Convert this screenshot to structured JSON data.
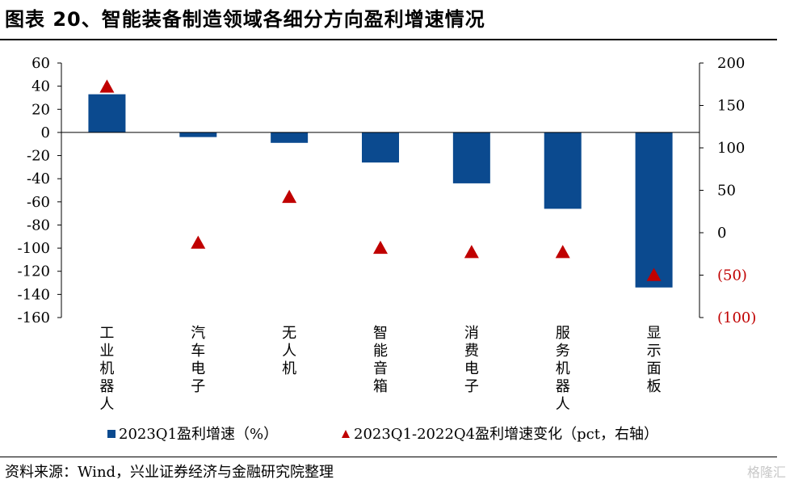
{
  "title": "图表 20、智能装备制造领域各细分方向盈利增速情况",
  "source": "资料来源：Wind，兴业证券经济与金融研究院整理",
  "watermark": "格隆汇",
  "colors": {
    "bar": "#0b4a8f",
    "marker": "#c00000",
    "neg_tick": "#c00000"
  },
  "chart_data": {
    "type": "bar",
    "categories": [
      "工业机器人",
      "汽车电子",
      "无人机",
      "智能音箱",
      "消费电子",
      "服务机器人",
      "显示面板"
    ],
    "series": [
      {
        "name": "2023Q1盈利增速（%）",
        "kind": "bar",
        "axis": "left",
        "values": [
          33,
          -4,
          -9,
          -26,
          -44,
          -66,
          -134
        ]
      },
      {
        "name": "2023Q1-2022Q4盈利增速变化（pct，右轴）",
        "kind": "marker-triangle",
        "axis": "right",
        "values": [
          172,
          -12,
          42,
          -18,
          -23,
          -23,
          -50
        ]
      }
    ],
    "y_left": {
      "min": -160,
      "max": 60,
      "ticks": [
        "60",
        "40",
        "20",
        "0",
        "-20",
        "-40",
        "-60",
        "-80",
        "-100",
        "-120",
        "-140",
        "-160"
      ]
    },
    "y_right": {
      "min": -100,
      "max": 200,
      "ticks": [
        "200",
        "150",
        "100",
        "50",
        "0",
        "(50)",
        "(100)"
      ]
    },
    "grid": false,
    "legend_position": "bottom"
  }
}
